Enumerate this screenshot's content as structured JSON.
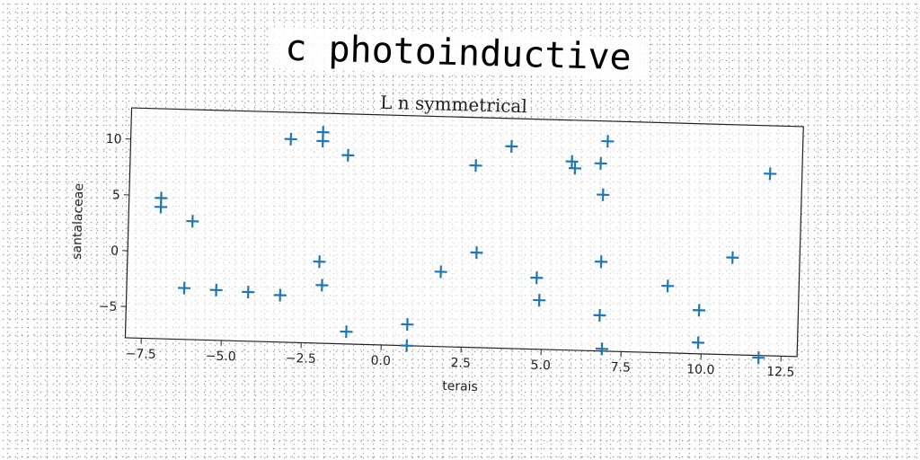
{
  "chart_data": {
    "type": "scatter",
    "title": "c photoinductive",
    "subtitle": "L n symmetrical",
    "xlabel": "terais",
    "ylabel": "santalaceae",
    "xlim": [
      -8,
      13
    ],
    "ylim": [
      -7.8,
      12.8
    ],
    "xticks": [
      -7.5,
      -5.0,
      -2.5,
      0.0,
      2.5,
      5.0,
      7.5,
      10.0,
      12.5
    ],
    "xtick_labels": [
      "−7.5",
      "−5.0",
      "−2.5",
      "0.0",
      "2.5",
      "5.0",
      "7.5",
      "10.0",
      "12.5"
    ],
    "yticks": [
      -5,
      0,
      5,
      10
    ],
    "ytick_labels": [
      "−5",
      "0",
      "5",
      "10"
    ],
    "grid": false,
    "marker": "plus",
    "color": "#1f77b4",
    "series": [
      {
        "x": [
          -7.0,
          -7.0,
          -6.0,
          -6.2,
          -5.2,
          -4.2,
          -3.2,
          -3.0,
          -2.0,
          -2.0,
          -2.0,
          -1.9,
          -1.2,
          -1.1,
          0.8,
          0.8,
          1.8,
          2.8,
          2.9,
          3.9,
          4.8,
          4.9,
          5.8,
          5.9,
          6.7,
          6.8,
          6.8,
          6.8,
          6.9,
          6.9,
          8.9,
          9.9,
          9.9,
          10.9,
          11.8,
          12.0
        ],
        "y": [
          4.8,
          4.0,
          2.8,
          -3.2,
          -3.3,
          -3.4,
          -3.6,
          10.4,
          11.1,
          10.3,
          -0.5,
          -2.6,
          9.1,
          -6.7,
          -5.9,
          -7.8,
          -1.1,
          8.5,
          0.7,
          10.3,
          -1.4,
          -3.4,
          9.1,
          8.5,
          9.0,
          6.2,
          0.2,
          -4.6,
          -7.6,
          11.0,
          -1.8,
          -3.9,
          -6.8,
          0.9,
          -8.0,
          8.5
        ]
      }
    ]
  }
}
